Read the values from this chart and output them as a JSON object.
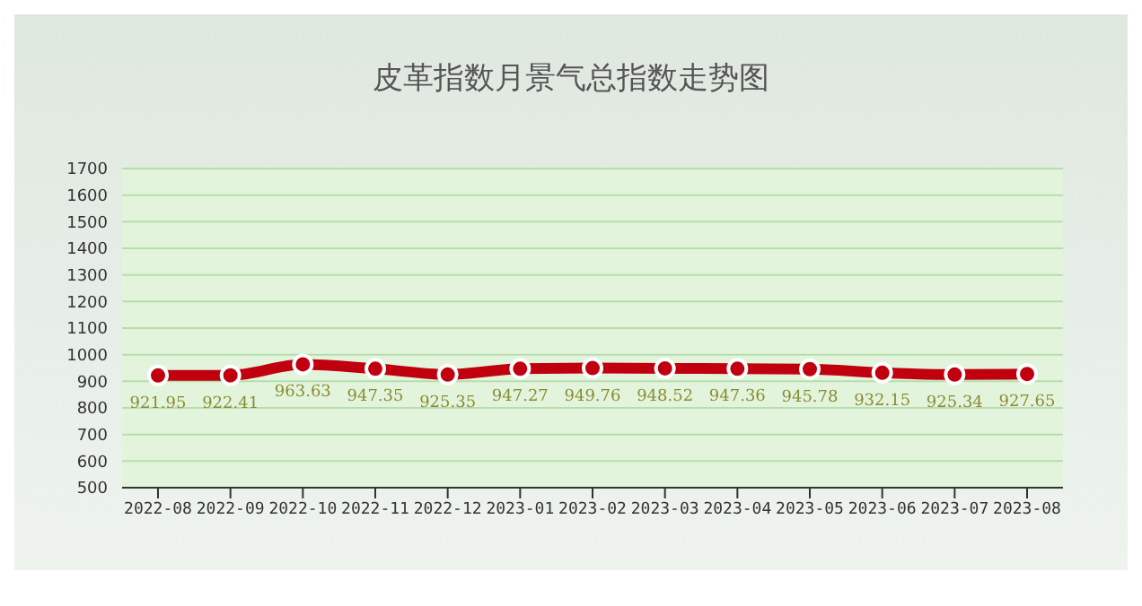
{
  "chart_data": {
    "type": "line",
    "title": "皮革指数月景气总指数走势图",
    "categories": [
      "2022-08",
      "2022-09",
      "2022-10",
      "2022-11",
      "2022-12",
      "2023-01",
      "2023-02",
      "2023-03",
      "2023-04",
      "2023-05",
      "2023-06",
      "2023-07",
      "2023-08"
    ],
    "series": [
      {
        "color": "#c0000f",
        "values": [
          921.95,
          922.41,
          963.63,
          947.35,
          925.35,
          947.27,
          949.76,
          948.52,
          947.36,
          945.78,
          932.15,
          925.34,
          927.65
        ]
      }
    ],
    "ylim": [
      500,
      1700
    ],
    "yticks": [
      500,
      600,
      700,
      800,
      900,
      1000,
      1100,
      1200,
      1300,
      1400,
      1500,
      1600,
      1700
    ],
    "grid": "y",
    "marker": "circle",
    "line_style": "solid",
    "data_labels": true
  }
}
